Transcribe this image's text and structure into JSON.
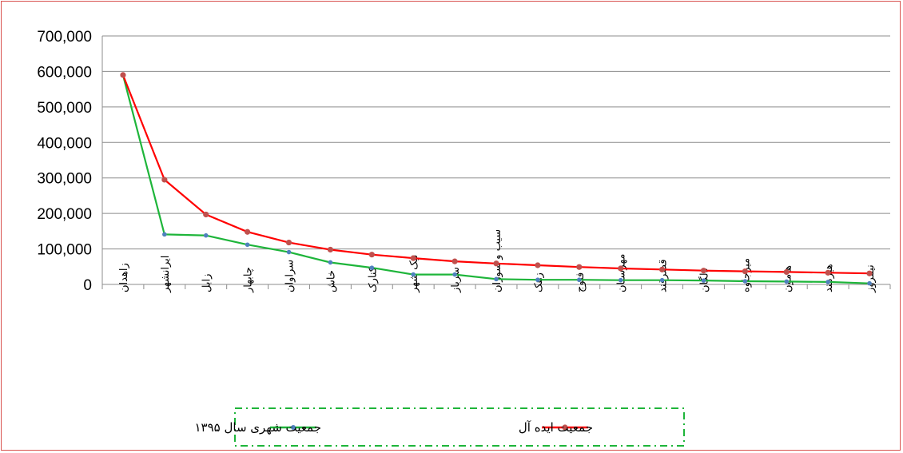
{
  "chart_data": {
    "type": "line",
    "title": "",
    "xlabel": "",
    "ylabel": "",
    "ylim": [
      0,
      700000
    ],
    "yticks": [
      0,
      100000,
      200000,
      300000,
      400000,
      500000,
      600000,
      700000
    ],
    "ytick_labels": [
      "0",
      "100,000",
      "200,000",
      "300,000",
      "400,000",
      "500,000",
      "600,000",
      "700,000"
    ],
    "grid": true,
    "legend_position": "bottom",
    "categories": [
      "زاهدان",
      "ایرانشهر",
      "زابل",
      "چابهار",
      "سراوان",
      "خاش",
      "کنارک",
      "نیک شهر",
      "سرباز",
      "سیب و سوران",
      "زهک",
      "فنوج",
      "مهرستان",
      "قصرقند",
      "دلگان",
      "میرجاوه",
      "هامون",
      "هیرمند",
      "نیمروز"
    ],
    "series": [
      {
        "name": "جمعیت ایده آل",
        "color": "#ff0000",
        "marker_color": "#c0504d",
        "values": [
          590000,
          295000,
          197000,
          148000,
          118000,
          98000,
          84000,
          74000,
          65000,
          59000,
          54000,
          49000,
          45000,
          42000,
          39000,
          37000,
          35000,
          33000,
          31000
        ]
      },
      {
        "name": "جمعیت شهری سال ۱۳۹۵",
        "color": "#1eb53a",
        "marker_color": "#4f81bd",
        "values": [
          590000,
          141000,
          138000,
          112000,
          91000,
          62000,
          47000,
          28000,
          28000,
          15000,
          13000,
          13000,
          12000,
          12000,
          11000,
          9000,
          8000,
          7000,
          3000
        ]
      }
    ]
  }
}
